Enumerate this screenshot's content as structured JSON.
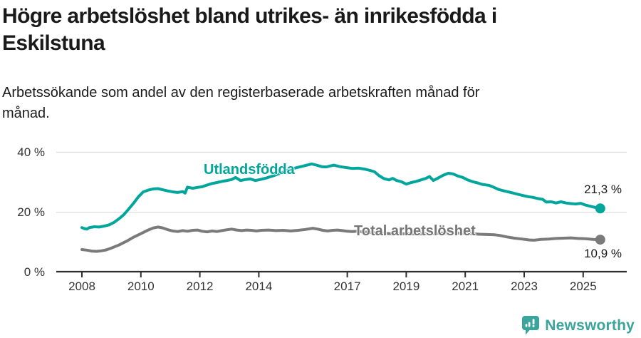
{
  "header": {
    "title_lines": [
      "Högre arbetslöshet bland utrikes- än inrikesfödda i",
      "Eskilstuna"
    ],
    "subtitle_lines": [
      "Arbetssökande som andel av den registerbaserade arbetskraften månad för",
      "månad."
    ]
  },
  "chart_data": {
    "type": "line",
    "title": "Högre arbetslöshet bland utrikes- än inrikesfödda i Eskilstuna",
    "subtitle": "Arbetssökande som andel av den registerbaserade arbetskraften månad för månad.",
    "xlabel": "",
    "ylabel": "",
    "x_unit": "year (monthly data)",
    "y_unit": "%",
    "xlim": [
      2007.3,
      2026.5
    ],
    "ylim": [
      0,
      42
    ],
    "grid": "horizontal",
    "x_ticks": [
      2008,
      2010,
      2012,
      2014,
      2017,
      2019,
      2021,
      2023,
      2025
    ],
    "x_tick_labels": [
      "2008",
      "2010",
      "2012",
      "2014",
      "2017",
      "2019",
      "2021",
      "2023",
      "2025"
    ],
    "y_ticks": [
      0,
      20,
      40
    ],
    "y_tick_labels": [
      "0 %",
      "20 %",
      "40 %"
    ],
    "colors": {
      "utlandsfodda": "#00a59b",
      "total": "#7a7a7a",
      "grid": "#dcdcdc",
      "axis": "#2e2e2e",
      "tick_text": "#333333",
      "brand_teal": "#3ba49c"
    },
    "series": [
      {
        "name": "Utlandsfödda",
        "color": "#00a59b",
        "end_label": "21,3 %",
        "end_value": 21.3,
        "points": [
          [
            2008.0,
            14.9
          ],
          [
            2008.08,
            14.6
          ],
          [
            2008.17,
            14.4
          ],
          [
            2008.25,
            14.9
          ],
          [
            2008.42,
            15.2
          ],
          [
            2008.58,
            15.1
          ],
          [
            2008.75,
            15.4
          ],
          [
            2008.92,
            15.8
          ],
          [
            2009.08,
            16.6
          ],
          [
            2009.25,
            17.8
          ],
          [
            2009.42,
            19.2
          ],
          [
            2009.58,
            21.0
          ],
          [
            2009.75,
            23.0
          ],
          [
            2009.92,
            25.2
          ],
          [
            2010.08,
            26.8
          ],
          [
            2010.25,
            27.4
          ],
          [
            2010.42,
            27.8
          ],
          [
            2010.58,
            27.9
          ],
          [
            2010.75,
            27.5
          ],
          [
            2010.92,
            27.1
          ],
          [
            2011.08,
            26.8
          ],
          [
            2011.25,
            26.6
          ],
          [
            2011.42,
            26.9
          ],
          [
            2011.5,
            26.4
          ],
          [
            2011.58,
            28.4
          ],
          [
            2011.75,
            28.0
          ],
          [
            2011.92,
            28.3
          ],
          [
            2012.08,
            28.5
          ],
          [
            2012.25,
            29.1
          ],
          [
            2012.42,
            29.6
          ],
          [
            2012.58,
            29.9
          ],
          [
            2012.75,
            30.3
          ],
          [
            2012.92,
            30.6
          ],
          [
            2013.08,
            30.9
          ],
          [
            2013.21,
            31.6
          ],
          [
            2013.38,
            30.6
          ],
          [
            2013.54,
            30.9
          ],
          [
            2013.71,
            31.1
          ],
          [
            2013.88,
            30.6
          ],
          [
            2014.04,
            30.9
          ],
          [
            2014.25,
            31.4
          ],
          [
            2014.5,
            32.2
          ],
          [
            2014.75,
            33.1
          ],
          [
            2015.0,
            34.1
          ],
          [
            2015.25,
            34.8
          ],
          [
            2015.5,
            35.4
          ],
          [
            2015.79,
            36.1
          ],
          [
            2015.96,
            35.7
          ],
          [
            2016.13,
            35.2
          ],
          [
            2016.29,
            35.1
          ],
          [
            2016.54,
            35.7
          ],
          [
            2016.75,
            35.2
          ],
          [
            2016.96,
            34.9
          ],
          [
            2017.17,
            34.6
          ],
          [
            2017.38,
            34.7
          ],
          [
            2017.58,
            34.4
          ],
          [
            2017.79,
            33.9
          ],
          [
            2017.92,
            33.5
          ],
          [
            2018.08,
            32.2
          ],
          [
            2018.25,
            31.2
          ],
          [
            2018.42,
            30.8
          ],
          [
            2018.54,
            31.3
          ],
          [
            2018.67,
            30.6
          ],
          [
            2018.83,
            30.2
          ],
          [
            2019.0,
            29.4
          ],
          [
            2019.17,
            29.9
          ],
          [
            2019.33,
            30.3
          ],
          [
            2019.5,
            30.8
          ],
          [
            2019.67,
            31.3
          ],
          [
            2019.79,
            31.9
          ],
          [
            2019.92,
            30.6
          ],
          [
            2020.08,
            31.4
          ],
          [
            2020.25,
            32.3
          ],
          [
            2020.42,
            33.0
          ],
          [
            2020.58,
            32.8
          ],
          [
            2020.75,
            32.1
          ],
          [
            2020.92,
            31.6
          ],
          [
            2021.08,
            30.8
          ],
          [
            2021.25,
            30.2
          ],
          [
            2021.42,
            29.8
          ],
          [
            2021.58,
            29.3
          ],
          [
            2021.79,
            29.0
          ],
          [
            2021.96,
            28.4
          ],
          [
            2022.13,
            27.6
          ],
          [
            2022.29,
            27.2
          ],
          [
            2022.46,
            26.8
          ],
          [
            2022.63,
            26.4
          ],
          [
            2022.79,
            26.0
          ],
          [
            2022.96,
            25.6
          ],
          [
            2023.13,
            25.2
          ],
          [
            2023.29,
            25.0
          ],
          [
            2023.46,
            24.6
          ],
          [
            2023.63,
            24.3
          ],
          [
            2023.75,
            23.4
          ],
          [
            2023.92,
            23.5
          ],
          [
            2024.08,
            23.1
          ],
          [
            2024.25,
            23.5
          ],
          [
            2024.42,
            23.1
          ],
          [
            2024.58,
            22.9
          ],
          [
            2024.75,
            22.8
          ],
          [
            2024.92,
            23.0
          ],
          [
            2025.08,
            22.4
          ],
          [
            2025.25,
            22.0
          ],
          [
            2025.42,
            21.6
          ],
          [
            2025.58,
            21.3
          ]
        ]
      },
      {
        "name": "Total arbetslöshet",
        "color": "#7a7a7a",
        "end_label": "10,9 %",
        "end_value": 10.9,
        "points": [
          [
            2008.0,
            7.6
          ],
          [
            2008.17,
            7.4
          ],
          [
            2008.33,
            7.1
          ],
          [
            2008.5,
            7.0
          ],
          [
            2008.67,
            7.2
          ],
          [
            2008.83,
            7.5
          ],
          [
            2009.0,
            8.1
          ],
          [
            2009.25,
            9.1
          ],
          [
            2009.5,
            10.3
          ],
          [
            2009.75,
            11.7
          ],
          [
            2010.0,
            12.9
          ],
          [
            2010.25,
            14.1
          ],
          [
            2010.42,
            14.8
          ],
          [
            2010.58,
            15.1
          ],
          [
            2010.75,
            14.8
          ],
          [
            2010.92,
            14.2
          ],
          [
            2011.08,
            13.8
          ],
          [
            2011.25,
            13.6
          ],
          [
            2011.42,
            13.9
          ],
          [
            2011.58,
            13.7
          ],
          [
            2011.75,
            14.0
          ],
          [
            2011.92,
            14.1
          ],
          [
            2012.08,
            13.7
          ],
          [
            2012.25,
            13.5
          ],
          [
            2012.42,
            13.8
          ],
          [
            2012.58,
            13.6
          ],
          [
            2012.75,
            13.9
          ],
          [
            2012.92,
            14.2
          ],
          [
            2013.08,
            14.4
          ],
          [
            2013.25,
            14.1
          ],
          [
            2013.42,
            13.9
          ],
          [
            2013.58,
            14.1
          ],
          [
            2013.75,
            14.0
          ],
          [
            2013.92,
            13.8
          ],
          [
            2014.08,
            14.0
          ],
          [
            2014.33,
            14.1
          ],
          [
            2014.58,
            13.9
          ],
          [
            2014.83,
            14.0
          ],
          [
            2015.08,
            13.8
          ],
          [
            2015.33,
            14.0
          ],
          [
            2015.58,
            14.3
          ],
          [
            2015.83,
            14.7
          ],
          [
            2016.0,
            14.4
          ],
          [
            2016.17,
            14.0
          ],
          [
            2016.33,
            13.8
          ],
          [
            2016.5,
            14.0
          ],
          [
            2016.67,
            14.1
          ],
          [
            2016.83,
            13.9
          ],
          [
            2017.0,
            13.7
          ],
          [
            2017.17,
            13.6
          ],
          [
            2017.33,
            13.7
          ],
          [
            2017.5,
            13.5
          ],
          [
            2017.75,
            13.3
          ],
          [
            2018.0,
            13.1
          ],
          [
            2018.5,
            12.9
          ],
          [
            2019.0,
            12.9
          ],
          [
            2019.5,
            12.8
          ],
          [
            2020.0,
            13.0
          ],
          [
            2020.5,
            13.2
          ],
          [
            2021.0,
            13.0
          ],
          [
            2021.5,
            12.7
          ],
          [
            2022.0,
            12.5
          ],
          [
            2022.17,
            12.3
          ],
          [
            2022.42,
            11.8
          ],
          [
            2022.67,
            11.4
          ],
          [
            2022.92,
            11.1
          ],
          [
            2023.17,
            10.8
          ],
          [
            2023.33,
            10.7
          ],
          [
            2023.58,
            11.0
          ],
          [
            2023.83,
            11.1
          ],
          [
            2024.08,
            11.3
          ],
          [
            2024.33,
            11.4
          ],
          [
            2024.58,
            11.5
          ],
          [
            2024.83,
            11.3
          ],
          [
            2025.08,
            11.2
          ],
          [
            2025.33,
            11.0
          ],
          [
            2025.58,
            10.9
          ]
        ]
      }
    ],
    "legend_position": "inline-labels"
  },
  "footer": {
    "brand": "Newsworthy"
  }
}
